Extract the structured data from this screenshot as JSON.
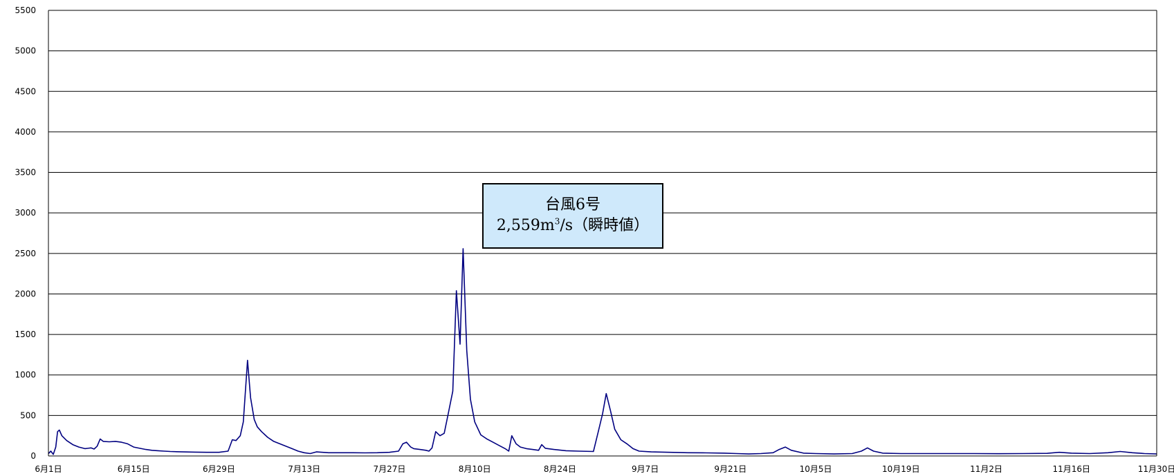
{
  "chart_data": {
    "type": "line",
    "title": "",
    "xlabel": "",
    "ylabel": "",
    "ylim": [
      0,
      5500
    ],
    "y_ticks": [
      0,
      500,
      1000,
      1500,
      2000,
      2500,
      3000,
      3500,
      4000,
      4500,
      5000,
      5500
    ],
    "x_tick_labels": [
      "6月1日",
      "6月15日",
      "6月29日",
      "7月13日",
      "7月27日",
      "8月10日",
      "8月24日",
      "9月7日",
      "9月21日",
      "10月5日",
      "10月19日",
      "11月2日",
      "11月16日",
      "11月30日"
    ],
    "x_range_days": [
      0,
      182
    ],
    "grid": true,
    "legend": "none",
    "series": [
      {
        "color": "#000080",
        "points": [
          [
            0,
            30
          ],
          [
            0.4,
            60
          ],
          [
            0.8,
            20
          ],
          [
            1.2,
            110
          ],
          [
            1.5,
            300
          ],
          [
            1.8,
            320
          ],
          [
            2.2,
            250
          ],
          [
            3,
            190
          ],
          [
            4,
            140
          ],
          [
            5,
            110
          ],
          [
            6,
            90
          ],
          [
            7,
            100
          ],
          [
            7.5,
            85
          ],
          [
            8,
            120
          ],
          [
            8.5,
            210
          ],
          [
            9,
            180
          ],
          [
            10,
            175
          ],
          [
            11,
            180
          ],
          [
            12,
            170
          ],
          [
            13,
            150
          ],
          [
            14,
            110
          ],
          [
            15,
            95
          ],
          [
            16,
            80
          ],
          [
            17,
            70
          ],
          [
            18,
            65
          ],
          [
            19,
            60
          ],
          [
            20,
            55
          ],
          [
            22,
            50
          ],
          [
            24,
            48
          ],
          [
            26,
            45
          ],
          [
            28,
            45
          ],
          [
            29.5,
            60
          ],
          [
            30.2,
            200
          ],
          [
            30.8,
            190
          ],
          [
            31.5,
            250
          ],
          [
            32,
            420
          ],
          [
            32.7,
            1180
          ],
          [
            33.2,
            720
          ],
          [
            33.8,
            450
          ],
          [
            34.3,
            360
          ],
          [
            35,
            300
          ],
          [
            36,
            230
          ],
          [
            37,
            180
          ],
          [
            38,
            150
          ],
          [
            39,
            120
          ],
          [
            40,
            90
          ],
          [
            41,
            60
          ],
          [
            42,
            40
          ],
          [
            43,
            30
          ],
          [
            44,
            50
          ],
          [
            46,
            40
          ],
          [
            48,
            40
          ],
          [
            50,
            40
          ],
          [
            52,
            38
          ],
          [
            54,
            40
          ],
          [
            56,
            45
          ],
          [
            57.5,
            60
          ],
          [
            58.2,
            150
          ],
          [
            58.8,
            170
          ],
          [
            59.5,
            110
          ],
          [
            60,
            90
          ],
          [
            61,
            80
          ],
          [
            62,
            70
          ],
          [
            62.5,
            60
          ],
          [
            63,
            100
          ],
          [
            63.6,
            300
          ],
          [
            64.3,
            250
          ],
          [
            65,
            280
          ],
          [
            65.6,
            500
          ],
          [
            66.4,
            800
          ],
          [
            67,
            2040
          ],
          [
            67.6,
            1380
          ],
          [
            68.1,
            2559
          ],
          [
            68.7,
            1300
          ],
          [
            69.3,
            700
          ],
          [
            70,
            420
          ],
          [
            71,
            260
          ],
          [
            72,
            210
          ],
          [
            73,
            170
          ],
          [
            74,
            130
          ],
          [
            75,
            90
          ],
          [
            75.6,
            60
          ],
          [
            76.1,
            250
          ],
          [
            76.8,
            150
          ],
          [
            77.5,
            110
          ],
          [
            78.5,
            90
          ],
          [
            79.5,
            80
          ],
          [
            80.5,
            70
          ],
          [
            81,
            140
          ],
          [
            81.6,
            95
          ],
          [
            83,
            80
          ],
          [
            85,
            65
          ],
          [
            87,
            60
          ],
          [
            89.5,
            55
          ],
          [
            90.3,
            300
          ],
          [
            91,
            520
          ],
          [
            91.6,
            770
          ],
          [
            92.3,
            560
          ],
          [
            93,
            330
          ],
          [
            94,
            200
          ],
          [
            95,
            150
          ],
          [
            96,
            90
          ],
          [
            97,
            60
          ],
          [
            99,
            50
          ],
          [
            102,
            45
          ],
          [
            105,
            40
          ],
          [
            108,
            38
          ],
          [
            111,
            35
          ],
          [
            113,
            30
          ],
          [
            115,
            25
          ],
          [
            117,
            30
          ],
          [
            119,
            40
          ],
          [
            120,
            80
          ],
          [
            121,
            110
          ],
          [
            122,
            70
          ],
          [
            124,
            35
          ],
          [
            126,
            30
          ],
          [
            129,
            25
          ],
          [
            132,
            30
          ],
          [
            133.5,
            60
          ],
          [
            134.5,
            100
          ],
          [
            135.5,
            60
          ],
          [
            137,
            35
          ],
          [
            140,
            30
          ],
          [
            144,
            30
          ],
          [
            148,
            30
          ],
          [
            152,
            30
          ],
          [
            156,
            28
          ],
          [
            160,
            30
          ],
          [
            164,
            32
          ],
          [
            166,
            45
          ],
          [
            168,
            35
          ],
          [
            171,
            30
          ],
          [
            174,
            40
          ],
          [
            176,
            55
          ],
          [
            178,
            40
          ],
          [
            180,
            30
          ],
          [
            182,
            25
          ]
        ]
      }
    ],
    "annotation": {
      "line1": "台風6号",
      "line2_main": "2,559m",
      "line2_sup": "3",
      "line2_rest": "/s（瞬時値）"
    }
  }
}
